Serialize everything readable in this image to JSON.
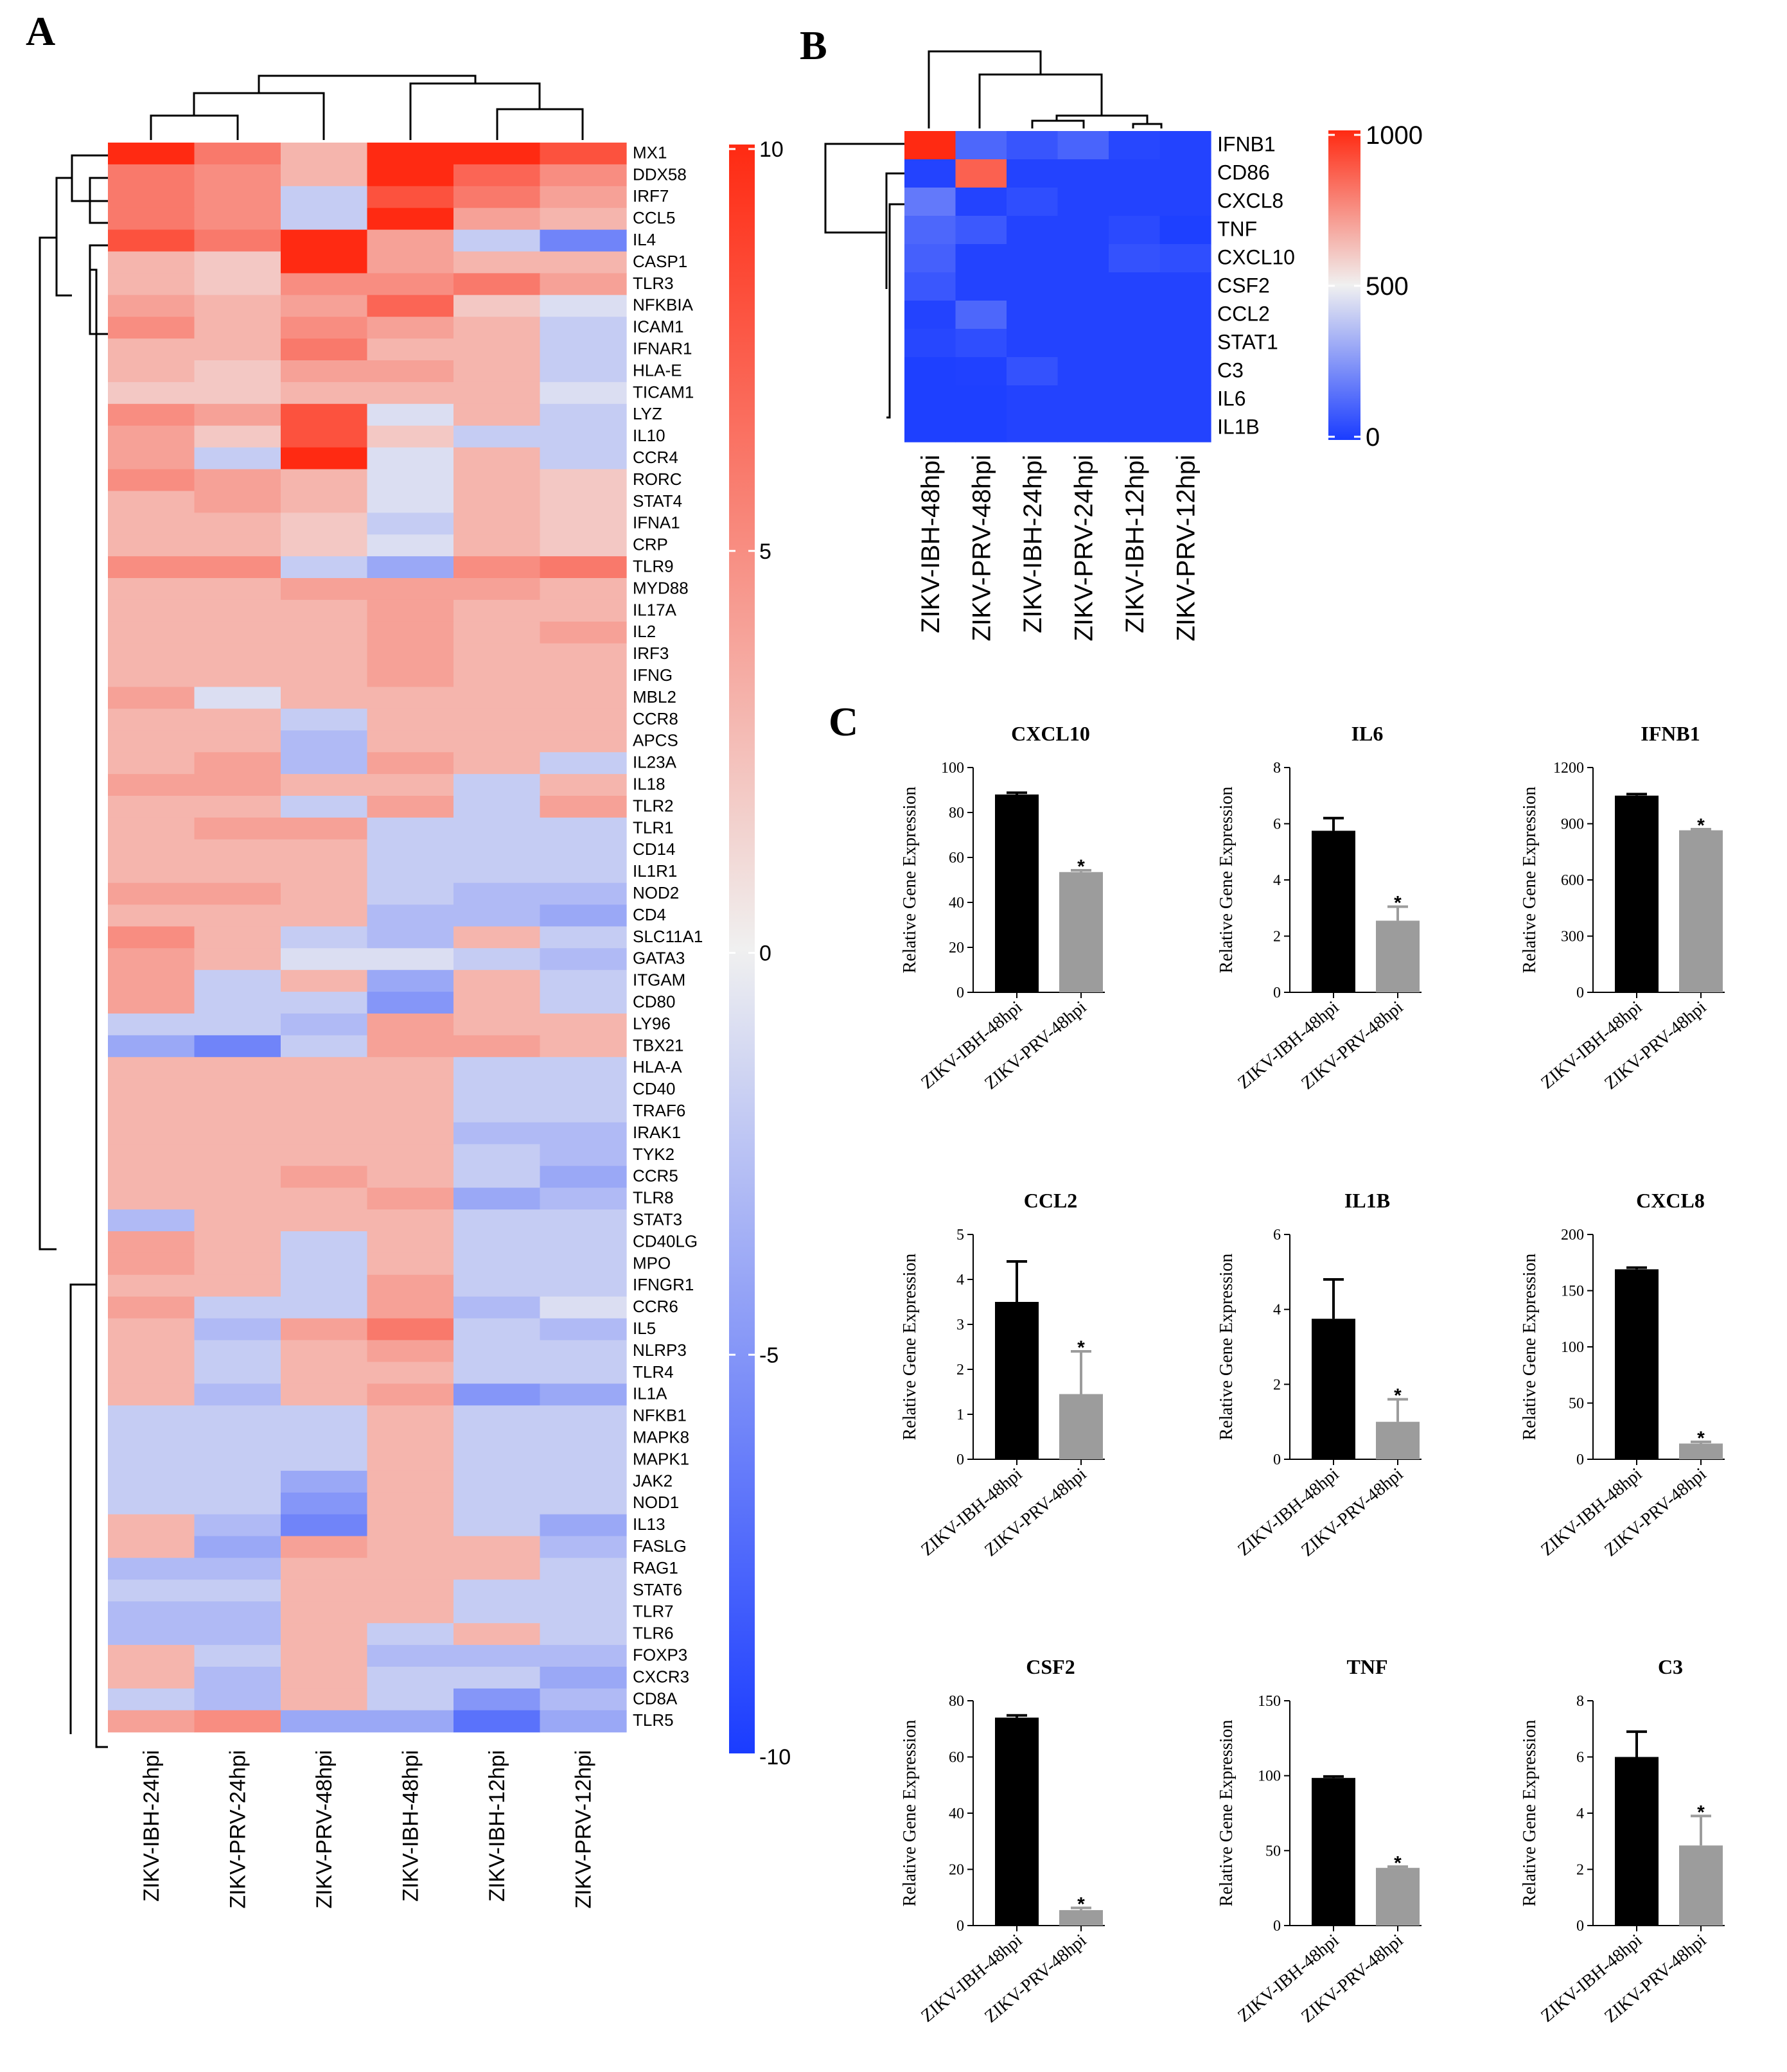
{
  "panel_labels": {
    "A": "A",
    "B": "B",
    "C": "C"
  },
  "colors": {
    "low": "#1a3cff",
    "mid": "#f0f0f0",
    "high": "#ff2a12",
    "bar_ibh": "#000000",
    "bar_prv": "#9c9c9c"
  },
  "chart_data": [
    {
      "type": "heatmap",
      "panel": "A",
      "columns": [
        "ZIKV-IBH-24hpi",
        "ZIKV-PRV-24hpi",
        "ZIKV-PRV-48hpi",
        "ZIKV-IBH-48hpi",
        "ZIKV-IBH-12hpi",
        "ZIKV-PRV-12hpi"
      ],
      "rows": [
        "MX1",
        "DDX58",
        "IRF7",
        "CCL5",
        "IL4",
        "CASP1",
        "TLR3",
        "NFKBIA",
        "ICAM1",
        "IFNAR1",
        "HLA-E",
        "TICAM1",
        "LYZ",
        "IL10",
        "CCR4",
        "RORC",
        "STAT4",
        "IFNA1",
        "CRP",
        "TLR9",
        "MYD88",
        "IL17A",
        "IL2",
        "IRF3",
        "IFNG",
        "MBL2",
        "CCR8",
        "APCS",
        "IL23A",
        "IL18",
        "TLR2",
        "TLR1",
        "CD14",
        "IL1R1",
        "NOD2",
        "CD4",
        "SLC11A1",
        "GATA3",
        "ITGAM",
        "CD80",
        "LY96",
        "TBX21",
        "HLA-A",
        "CD40",
        "TRAF6",
        "IRAK1",
        "TYK2",
        "CCR5",
        "TLR8",
        "STAT3",
        "CD40LG",
        "MPO",
        "IFNGR1",
        "CCR6",
        "IL5",
        "NLRP3",
        "TLR4",
        "IL1A",
        "NFKB1",
        "MAPK8",
        "MAPK1",
        "JAK2",
        "NOD1",
        "IL13",
        "FASLG",
        "RAG1",
        "STAT6",
        "TLR7",
        "TLR6",
        "FOXP3",
        "CXCR3",
        "CD8A",
        "TLR5"
      ],
      "values": [
        [
          10,
          6,
          3,
          10,
          10,
          8
        ],
        [
          6,
          5,
          3,
          10,
          7,
          5
        ],
        [
          6,
          5,
          -2,
          8,
          6,
          4
        ],
        [
          6,
          5,
          -2,
          10,
          4,
          3
        ],
        [
          8,
          6,
          10,
          4,
          -2,
          -6
        ],
        [
          3,
          2,
          10,
          4,
          3,
          3
        ],
        [
          3,
          2,
          5,
          5,
          6,
          4
        ],
        [
          4,
          3,
          4,
          7,
          2,
          -1
        ],
        [
          5,
          3,
          5,
          4,
          3,
          -2
        ],
        [
          3,
          3,
          6,
          3,
          3,
          -2
        ],
        [
          3,
          2,
          4,
          4,
          3,
          -2
        ],
        [
          2,
          2,
          3,
          3,
          3,
          -1
        ],
        [
          5,
          4,
          8,
          -1,
          3,
          -2
        ],
        [
          4,
          2,
          8,
          2,
          -2,
          -2
        ],
        [
          4,
          -2,
          10,
          -1,
          3,
          -2
        ],
        [
          5,
          4,
          3,
          -1,
          3,
          2
        ],
        [
          3,
          4,
          3,
          -1,
          3,
          2
        ],
        [
          3,
          3,
          2,
          -2,
          3,
          2
        ],
        [
          3,
          3,
          2,
          -1,
          3,
          2
        ],
        [
          5,
          5,
          -2,
          -4,
          5,
          6
        ],
        [
          3,
          3,
          4,
          4,
          4,
          3
        ],
        [
          3,
          3,
          3,
          4,
          3,
          3
        ],
        [
          3,
          3,
          3,
          4,
          3,
          4
        ],
        [
          3,
          3,
          3,
          4,
          3,
          3
        ],
        [
          3,
          3,
          3,
          4,
          3,
          3
        ],
        [
          4,
          -1,
          3,
          3,
          3,
          3
        ],
        [
          3,
          3,
          -2,
          3,
          3,
          3
        ],
        [
          3,
          3,
          -3,
          3,
          3,
          3
        ],
        [
          3,
          4,
          -3,
          4,
          3,
          -2
        ],
        [
          4,
          4,
          3,
          3,
          -2,
          3
        ],
        [
          3,
          3,
          -2,
          4,
          -2,
          4
        ],
        [
          3,
          4,
          4,
          -2,
          -2,
          -2
        ],
        [
          3,
          3,
          3,
          -2,
          -2,
          -2
        ],
        [
          3,
          3,
          3,
          -2,
          -2,
          -2
        ],
        [
          4,
          4,
          3,
          -2,
          -3,
          -3
        ],
        [
          3,
          3,
          3,
          -3,
          -3,
          -4
        ],
        [
          5,
          3,
          -2,
          -3,
          3,
          -2
        ],
        [
          4,
          3,
          -1,
          -1,
          -2,
          -3
        ],
        [
          4,
          -2,
          3,
          -4,
          3,
          -2
        ],
        [
          4,
          -2,
          -2,
          -5,
          3,
          -2
        ],
        [
          -2,
          -2,
          -3,
          4,
          3,
          3
        ],
        [
          -4,
          -6,
          -2,
          4,
          4,
          3
        ],
        [
          3,
          3,
          3,
          3,
          -2,
          -2
        ],
        [
          3,
          3,
          3,
          3,
          -2,
          -2
        ],
        [
          3,
          3,
          3,
          3,
          -2,
          -2
        ],
        [
          3,
          3,
          3,
          3,
          -3,
          -3
        ],
        [
          3,
          3,
          3,
          3,
          -2,
          -3
        ],
        [
          3,
          3,
          4,
          3,
          -2,
          -4
        ],
        [
          3,
          3,
          3,
          4,
          -4,
          -3
        ],
        [
          -3,
          3,
          3,
          3,
          -2,
          -2
        ],
        [
          4,
          3,
          -2,
          3,
          -2,
          -2
        ],
        [
          4,
          3,
          -2,
          3,
          -2,
          -2
        ],
        [
          3,
          3,
          -2,
          4,
          -2,
          -2
        ],
        [
          4,
          -2,
          -2,
          4,
          -3,
          -1
        ],
        [
          3,
          -3,
          4,
          6,
          -2,
          -3
        ],
        [
          3,
          -2,
          3,
          4,
          -2,
          -2
        ],
        [
          3,
          -2,
          3,
          3,
          -2,
          -2
        ],
        [
          3,
          -3,
          3,
          4,
          -5,
          -4
        ],
        [
          -2,
          -2,
          -2,
          3,
          -2,
          -2
        ],
        [
          -2,
          -2,
          -2,
          3,
          -2,
          -2
        ],
        [
          -2,
          -2,
          -2,
          3,
          -2,
          -2
        ],
        [
          -2,
          -2,
          -4,
          3,
          -2,
          -2
        ],
        [
          -2,
          -2,
          -5,
          3,
          -2,
          -2
        ],
        [
          3,
          -3,
          -6,
          3,
          -2,
          -4
        ],
        [
          3,
          -4,
          4,
          3,
          3,
          -3
        ],
        [
          -3,
          -3,
          3,
          3,
          3,
          -2
        ],
        [
          -2,
          -2,
          3,
          3,
          -2,
          -2
        ],
        [
          -3,
          -3,
          3,
          3,
          -2,
          -2
        ],
        [
          -3,
          -3,
          3,
          -2,
          3,
          -2
        ],
        [
          3,
          -2,
          3,
          -3,
          -3,
          -3
        ],
        [
          3,
          -3,
          3,
          -2,
          -2,
          -4
        ],
        [
          -2,
          -3,
          3,
          -2,
          -5,
          -3
        ],
        [
          4,
          5,
          -4,
          -4,
          -7,
          -4
        ]
      ],
      "colorbar": {
        "ticks": [
          "10",
          "5",
          "0",
          "-5",
          "-10"
        ],
        "range": [
          -10,
          10
        ]
      }
    },
    {
      "type": "heatmap",
      "panel": "B",
      "columns": [
        "ZIKV-IBH-48hpi",
        "ZIKV-PRV-48hpi",
        "ZIKV-IBH-24hpi",
        "ZIKV-PRV-24hpi",
        "ZIKV-IBH-12hpi",
        "ZIKV-PRV-12hpi"
      ],
      "rows": [
        "IFNB1",
        "CD86",
        "CXCL8",
        "TNF",
        "CXCL10",
        "CSF2",
        "CCL2",
        "STAT1",
        "C3",
        "IL6",
        "IL1B"
      ],
      "values": [
        [
          1050,
          120,
          70,
          110,
          30,
          20
        ],
        [
          20,
          860,
          20,
          20,
          20,
          20
        ],
        [
          170,
          20,
          50,
          20,
          20,
          20
        ],
        [
          120,
          80,
          20,
          20,
          40,
          10
        ],
        [
          100,
          20,
          20,
          20,
          60,
          50
        ],
        [
          75,
          20,
          20,
          20,
          20,
          20
        ],
        [
          20,
          120,
          20,
          20,
          20,
          20
        ],
        [
          30,
          50,
          20,
          20,
          20,
          20
        ],
        [
          10,
          15,
          60,
          20,
          20,
          20
        ],
        [
          10,
          10,
          20,
          20,
          20,
          20
        ],
        [
          10,
          10,
          20,
          20,
          20,
          20
        ]
      ],
      "colorbar": {
        "ticks": [
          "1000",
          "500",
          "0"
        ],
        "range": [
          0,
          1000
        ]
      }
    },
    {
      "type": "bar",
      "panel": "C",
      "ylabel": "Relative Gene Expression",
      "categories": [
        "ZIKV-IBH-48hpi",
        "ZIKV-PRV-48hpi"
      ],
      "plots": [
        {
          "title": "CXCL10",
          "values": [
            88,
            53.5
          ],
          "errors": [
            0.8,
            0.8
          ],
          "ylim": [
            0,
            100
          ],
          "yticks": [
            "0",
            "20",
            "40",
            "60",
            "80",
            "100"
          ],
          "sig": "*"
        },
        {
          "title": "IL6",
          "values": [
            5.75,
            2.55
          ],
          "errors": [
            0.45,
            0.5
          ],
          "ylim": [
            0,
            8
          ],
          "yticks": [
            "0",
            "2",
            "4",
            "6",
            "8"
          ],
          "sig": "*"
        },
        {
          "title": "IFNB1",
          "values": [
            1050,
            865
          ],
          "errors": [
            8,
            6
          ],
          "ylim": [
            0,
            1200
          ],
          "yticks": [
            "0",
            "300",
            "600",
            "900",
            "1200"
          ],
          "sig": "*"
        },
        {
          "title": "CCL2",
          "values": [
            3.5,
            1.45
          ],
          "errors": [
            0.9,
            0.95
          ],
          "ylim": [
            0,
            5
          ],
          "yticks": [
            "0",
            "1",
            "2",
            "3",
            "4",
            "5"
          ],
          "sig": "*"
        },
        {
          "title": "IL1B",
          "values": [
            3.75,
            1.0
          ],
          "errors": [
            1.05,
            0.6
          ],
          "ylim": [
            0,
            6
          ],
          "yticks": [
            "0",
            "2",
            "4",
            "6"
          ],
          "sig": "*"
        },
        {
          "title": "CXCL8",
          "values": [
            169,
            14
          ],
          "errors": [
            1.5,
            1.5
          ],
          "ylim": [
            0,
            200
          ],
          "yticks": [
            "0",
            "50",
            "100",
            "150",
            "200"
          ],
          "sig": "*"
        },
        {
          "title": "CSF2",
          "values": [
            74,
            5.5
          ],
          "errors": [
            0.8,
            0.8
          ],
          "ylim": [
            0,
            80
          ],
          "yticks": [
            "0",
            "20",
            "40",
            "60",
            "80"
          ],
          "sig": "*"
        },
        {
          "title": "TNF",
          "values": [
            98.5,
            38.5
          ],
          "errors": [
            1,
            0.8
          ],
          "ylim": [
            0,
            150
          ],
          "yticks": [
            "0",
            "50",
            "100",
            "150"
          ],
          "sig": "*"
        },
        {
          "title": "C3",
          "values": [
            6.0,
            2.85
          ],
          "errors": [
            0.9,
            1.05
          ],
          "ylim": [
            0,
            8
          ],
          "yticks": [
            "0",
            "2",
            "4",
            "6",
            "8"
          ],
          "sig": "*"
        }
      ]
    }
  ]
}
